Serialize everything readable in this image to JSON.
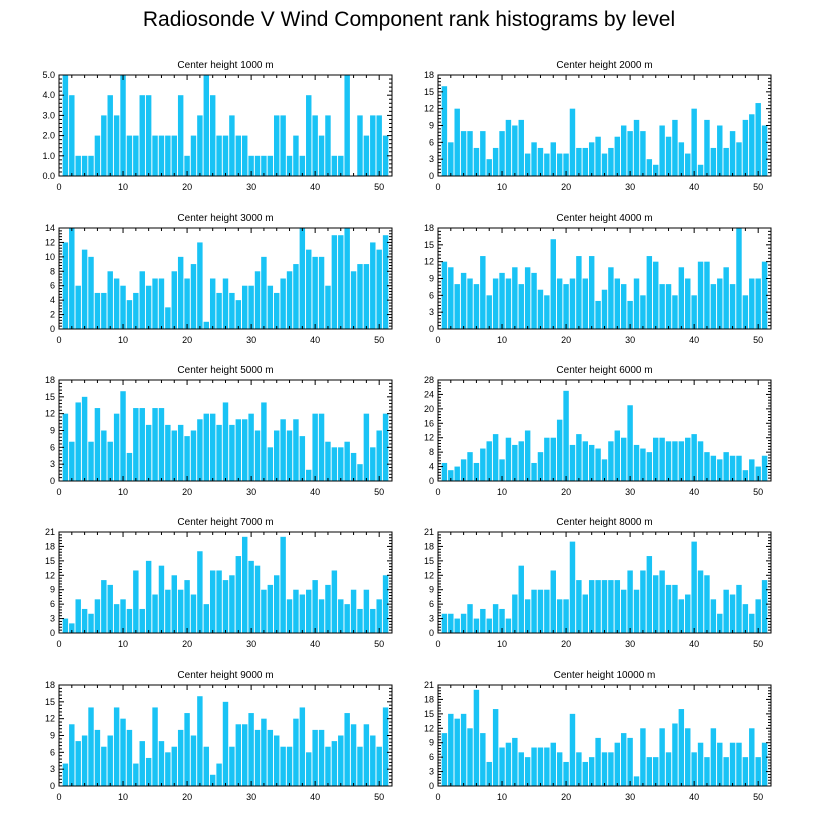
{
  "title": "Radiosonde V Wind Component rank histograms by level",
  "colors": {
    "bar": "#19c3f5",
    "axis": "#000000",
    "background": "#ffffff"
  },
  "chart_data": [
    {
      "type": "bar",
      "title": "Center height 1000 m",
      "x": [
        1,
        2,
        3,
        4,
        5,
        6,
        7,
        8,
        9,
        10,
        11,
        12,
        13,
        14,
        15,
        16,
        17,
        18,
        19,
        20,
        21,
        22,
        23,
        24,
        25,
        26,
        27,
        28,
        29,
        30,
        31,
        32,
        33,
        34,
        35,
        36,
        37,
        38,
        39,
        40,
        41,
        42,
        43,
        44,
        45,
        46,
        47,
        48,
        49,
        50,
        51
      ],
      "values": [
        5,
        4,
        1,
        1,
        1,
        2,
        3,
        4,
        3,
        5,
        2,
        2,
        4,
        4,
        2,
        2,
        2,
        2,
        4,
        1,
        2,
        3,
        5,
        4,
        2,
        2,
        3,
        2,
        2,
        1,
        1,
        1,
        1,
        3,
        3,
        1,
        2,
        1,
        4,
        3,
        2,
        3,
        1,
        1,
        5,
        0,
        3,
        2,
        3,
        3,
        2
      ],
      "xlim": [
        0,
        52
      ],
      "ylim": [
        0,
        5
      ],
      "yticks": [
        "0.0",
        "1.0",
        "2.0",
        "3.0",
        "4.0",
        "5.0"
      ],
      "xticks": [
        "0",
        "10",
        "20",
        "30",
        "40",
        "50"
      ]
    },
    {
      "type": "bar",
      "title": "Center height 2000 m",
      "x": [
        1,
        2,
        3,
        4,
        5,
        6,
        7,
        8,
        9,
        10,
        11,
        12,
        13,
        14,
        15,
        16,
        17,
        18,
        19,
        20,
        21,
        22,
        23,
        24,
        25,
        26,
        27,
        28,
        29,
        30,
        31,
        32,
        33,
        34,
        35,
        36,
        37,
        38,
        39,
        40,
        41,
        42,
        43,
        44,
        45,
        46,
        47,
        48,
        49,
        50,
        51
      ],
      "values": [
        16,
        6,
        12,
        8,
        8,
        5,
        8,
        3,
        5,
        8,
        10,
        9,
        10,
        4,
        6,
        5,
        4,
        6,
        4,
        4,
        12,
        5,
        5,
        6,
        7,
        4,
        5,
        7,
        9,
        8,
        10,
        8,
        3,
        2,
        9,
        7,
        10,
        6,
        4,
        12,
        2,
        10,
        5,
        9,
        5,
        8,
        6,
        10,
        11,
        13,
        9
      ],
      "xlim": [
        0,
        52
      ],
      "ylim": [
        0,
        18
      ],
      "yticks": [
        "0",
        "3",
        "6",
        "9",
        "12",
        "15",
        "18"
      ],
      "xticks": [
        "0",
        "10",
        "20",
        "30",
        "40",
        "50"
      ]
    },
    {
      "type": "bar",
      "title": "Center height 3000 m",
      "x": [
        1,
        2,
        3,
        4,
        5,
        6,
        7,
        8,
        9,
        10,
        11,
        12,
        13,
        14,
        15,
        16,
        17,
        18,
        19,
        20,
        21,
        22,
        23,
        24,
        25,
        26,
        27,
        28,
        29,
        30,
        31,
        32,
        33,
        34,
        35,
        36,
        37,
        38,
        39,
        40,
        41,
        42,
        43,
        44,
        45,
        46,
        47,
        48,
        49,
        50,
        51
      ],
      "values": [
        12,
        14,
        6,
        11,
        10,
        5,
        5,
        8,
        7,
        6,
        4,
        5,
        8,
        6,
        7,
        7,
        3,
        8,
        10,
        7,
        9,
        12,
        1,
        7,
        5,
        7,
        5,
        4,
        6,
        6,
        8,
        10,
        6,
        5,
        7,
        8,
        9,
        14,
        11,
        10,
        10,
        6,
        13,
        13,
        14,
        8,
        9,
        9,
        12,
        11,
        13
      ],
      "xlim": [
        0,
        52
      ],
      "ylim": [
        0,
        14
      ],
      "yticks": [
        "0",
        "2",
        "4",
        "6",
        "8",
        "10",
        "12",
        "14"
      ],
      "xticks": [
        "0",
        "10",
        "20",
        "30",
        "40",
        "50"
      ]
    },
    {
      "type": "bar",
      "title": "Center height 4000 m",
      "x": [
        1,
        2,
        3,
        4,
        5,
        6,
        7,
        8,
        9,
        10,
        11,
        12,
        13,
        14,
        15,
        16,
        17,
        18,
        19,
        20,
        21,
        22,
        23,
        24,
        25,
        26,
        27,
        28,
        29,
        30,
        31,
        32,
        33,
        34,
        35,
        36,
        37,
        38,
        39,
        40,
        41,
        42,
        43,
        44,
        45,
        46,
        47,
        48,
        49,
        50,
        51
      ],
      "values": [
        12,
        11,
        8,
        10,
        9,
        8,
        13,
        6,
        9,
        10,
        9,
        11,
        8,
        11,
        10,
        7,
        6,
        16,
        9,
        8,
        9,
        13,
        9,
        13,
        5,
        7,
        11,
        9,
        8,
        5,
        9,
        6,
        13,
        12,
        8,
        8,
        6,
        11,
        9,
        6,
        12,
        12,
        8,
        9,
        11,
        8,
        18,
        6,
        9,
        9,
        12
      ],
      "xlim": [
        0,
        52
      ],
      "ylim": [
        0,
        18
      ],
      "yticks": [
        "0",
        "3",
        "6",
        "9",
        "12",
        "15",
        "18"
      ],
      "xticks": [
        "0",
        "10",
        "20",
        "30",
        "40",
        "50"
      ]
    },
    {
      "type": "bar",
      "title": "Center height 5000 m",
      "x": [
        1,
        2,
        3,
        4,
        5,
        6,
        7,
        8,
        9,
        10,
        11,
        12,
        13,
        14,
        15,
        16,
        17,
        18,
        19,
        20,
        21,
        22,
        23,
        24,
        25,
        26,
        27,
        28,
        29,
        30,
        31,
        32,
        33,
        34,
        35,
        36,
        37,
        38,
        39,
        40,
        41,
        42,
        43,
        44,
        45,
        46,
        47,
        48,
        49,
        50,
        51
      ],
      "values": [
        12,
        7,
        14,
        15,
        7,
        13,
        9,
        7,
        12,
        16,
        5,
        13,
        13,
        10,
        13,
        13,
        10,
        9,
        10,
        8,
        9,
        11,
        12,
        12,
        10,
        14,
        10,
        11,
        11,
        12,
        9,
        14,
        6,
        9,
        11,
        9,
        11,
        8,
        2,
        12,
        12,
        7,
        6,
        6,
        7,
        5,
        3,
        12,
        6,
        9,
        12
      ],
      "xlim": [
        0,
        52
      ],
      "ylim": [
        0,
        18
      ],
      "yticks": [
        "0",
        "3",
        "6",
        "9",
        "12",
        "15",
        "18"
      ],
      "xticks": [
        "0",
        "10",
        "20",
        "30",
        "40",
        "50"
      ]
    },
    {
      "type": "bar",
      "title": "Center height 6000 m",
      "x": [
        1,
        2,
        3,
        4,
        5,
        6,
        7,
        8,
        9,
        10,
        11,
        12,
        13,
        14,
        15,
        16,
        17,
        18,
        19,
        20,
        21,
        22,
        23,
        24,
        25,
        26,
        27,
        28,
        29,
        30,
        31,
        32,
        33,
        34,
        35,
        36,
        37,
        38,
        39,
        40,
        41,
        42,
        43,
        44,
        45,
        46,
        47,
        48,
        49,
        50,
        51
      ],
      "values": [
        5,
        3,
        4,
        6,
        8,
        5,
        9,
        11,
        13,
        6,
        12,
        10,
        11,
        14,
        5,
        8,
        12,
        12,
        17,
        25,
        10,
        13,
        11,
        10,
        9,
        6,
        11,
        14,
        12,
        21,
        10,
        9,
        8,
        12,
        12,
        11,
        11,
        11,
        12,
        13,
        11,
        8,
        7,
        6,
        8,
        7,
        7,
        3,
        6,
        4,
        7
      ],
      "xlim": [
        0,
        52
      ],
      "ylim": [
        0,
        28
      ],
      "yticks": [
        "0",
        "4",
        "8",
        "12",
        "16",
        "20",
        "24",
        "28"
      ],
      "xticks": [
        "0",
        "10",
        "20",
        "30",
        "40",
        "50"
      ]
    },
    {
      "type": "bar",
      "title": "Center height 7000 m",
      "x": [
        1,
        2,
        3,
        4,
        5,
        6,
        7,
        8,
        9,
        10,
        11,
        12,
        13,
        14,
        15,
        16,
        17,
        18,
        19,
        20,
        21,
        22,
        23,
        24,
        25,
        26,
        27,
        28,
        29,
        30,
        31,
        32,
        33,
        34,
        35,
        36,
        37,
        38,
        39,
        40,
        41,
        42,
        43,
        44,
        45,
        46,
        47,
        48,
        49,
        50,
        51
      ],
      "values": [
        3,
        2,
        7,
        5,
        4,
        7,
        11,
        10,
        6,
        7,
        5,
        13,
        5,
        15,
        8,
        14,
        9,
        12,
        9,
        11,
        8,
        17,
        6,
        13,
        13,
        11,
        12,
        16,
        20,
        15,
        14,
        9,
        10,
        12,
        20,
        7,
        9,
        8,
        9,
        11,
        7,
        10,
        13,
        7,
        6,
        9,
        5,
        9,
        5,
        7,
        12
      ],
      "xlim": [
        0,
        52
      ],
      "ylim": [
        0,
        21
      ],
      "yticks": [
        "0",
        "3",
        "6",
        "9",
        "12",
        "15",
        "18",
        "21"
      ],
      "xticks": [
        "0",
        "10",
        "20",
        "30",
        "40",
        "50"
      ]
    },
    {
      "type": "bar",
      "title": "Center height 8000 m",
      "x": [
        1,
        2,
        3,
        4,
        5,
        6,
        7,
        8,
        9,
        10,
        11,
        12,
        13,
        14,
        15,
        16,
        17,
        18,
        19,
        20,
        21,
        22,
        23,
        24,
        25,
        26,
        27,
        28,
        29,
        30,
        31,
        32,
        33,
        34,
        35,
        36,
        37,
        38,
        39,
        40,
        41,
        42,
        43,
        44,
        45,
        46,
        47,
        48,
        49,
        50,
        51
      ],
      "values": [
        4,
        4,
        3,
        4,
        6,
        3,
        5,
        3,
        6,
        5,
        3,
        8,
        14,
        7,
        9,
        9,
        9,
        13,
        7,
        7,
        19,
        11,
        8,
        11,
        11,
        11,
        11,
        11,
        9,
        13,
        9,
        13,
        16,
        12,
        13,
        10,
        10,
        7,
        8,
        19,
        13,
        12,
        7,
        4,
        9,
        8,
        10,
        6,
        4,
        7,
        11
      ],
      "xlim": [
        0,
        52
      ],
      "ylim": [
        0,
        21
      ],
      "yticks": [
        "0",
        "3",
        "6",
        "9",
        "12",
        "15",
        "18",
        "21"
      ],
      "xticks": [
        "0",
        "10",
        "20",
        "30",
        "40",
        "50"
      ]
    },
    {
      "type": "bar",
      "title": "Center height 9000 m",
      "x": [
        1,
        2,
        3,
        4,
        5,
        6,
        7,
        8,
        9,
        10,
        11,
        12,
        13,
        14,
        15,
        16,
        17,
        18,
        19,
        20,
        21,
        22,
        23,
        24,
        25,
        26,
        27,
        28,
        29,
        30,
        31,
        32,
        33,
        34,
        35,
        36,
        37,
        38,
        39,
        40,
        41,
        42,
        43,
        44,
        45,
        46,
        47,
        48,
        49,
        50,
        51
      ],
      "values": [
        4,
        11,
        8,
        9,
        14,
        10,
        7,
        9,
        14,
        12,
        10,
        4,
        8,
        5,
        14,
        8,
        6,
        7,
        10,
        13,
        9,
        16,
        7,
        2,
        4,
        15,
        7,
        11,
        11,
        13,
        10,
        12,
        10,
        9,
        7,
        7,
        12,
        14,
        6,
        10,
        10,
        7,
        8,
        9,
        13,
        11,
        7,
        11,
        9,
        7,
        14
      ],
      "xlim": [
        0,
        52
      ],
      "ylim": [
        0,
        18
      ],
      "yticks": [
        "0",
        "3",
        "6",
        "9",
        "12",
        "15",
        "18"
      ],
      "xticks": [
        "0",
        "10",
        "20",
        "30",
        "40",
        "50"
      ]
    },
    {
      "type": "bar",
      "title": "Center height 10000 m",
      "x": [
        1,
        2,
        3,
        4,
        5,
        6,
        7,
        8,
        9,
        10,
        11,
        12,
        13,
        14,
        15,
        16,
        17,
        18,
        19,
        20,
        21,
        22,
        23,
        24,
        25,
        26,
        27,
        28,
        29,
        30,
        31,
        32,
        33,
        34,
        35,
        36,
        37,
        38,
        39,
        40,
        41,
        42,
        43,
        44,
        45,
        46,
        47,
        48,
        49,
        50,
        51
      ],
      "values": [
        11,
        15,
        14,
        15,
        12,
        20,
        11,
        5,
        16,
        8,
        9,
        10,
        7,
        6,
        8,
        8,
        8,
        9,
        7,
        5,
        15,
        7,
        5,
        6,
        10,
        7,
        7,
        9,
        11,
        10,
        2,
        12,
        6,
        6,
        12,
        7,
        13,
        16,
        12,
        7,
        9,
        6,
        12,
        9,
        6,
        9,
        9,
        6,
        12,
        6,
        9
      ],
      "xlim": [
        0,
        52
      ],
      "ylim": [
        0,
        21
      ],
      "yticks": [
        "0",
        "3",
        "6",
        "9",
        "12",
        "15",
        "18",
        "21"
      ],
      "xticks": [
        "0",
        "10",
        "20",
        "30",
        "40",
        "50"
      ]
    }
  ]
}
